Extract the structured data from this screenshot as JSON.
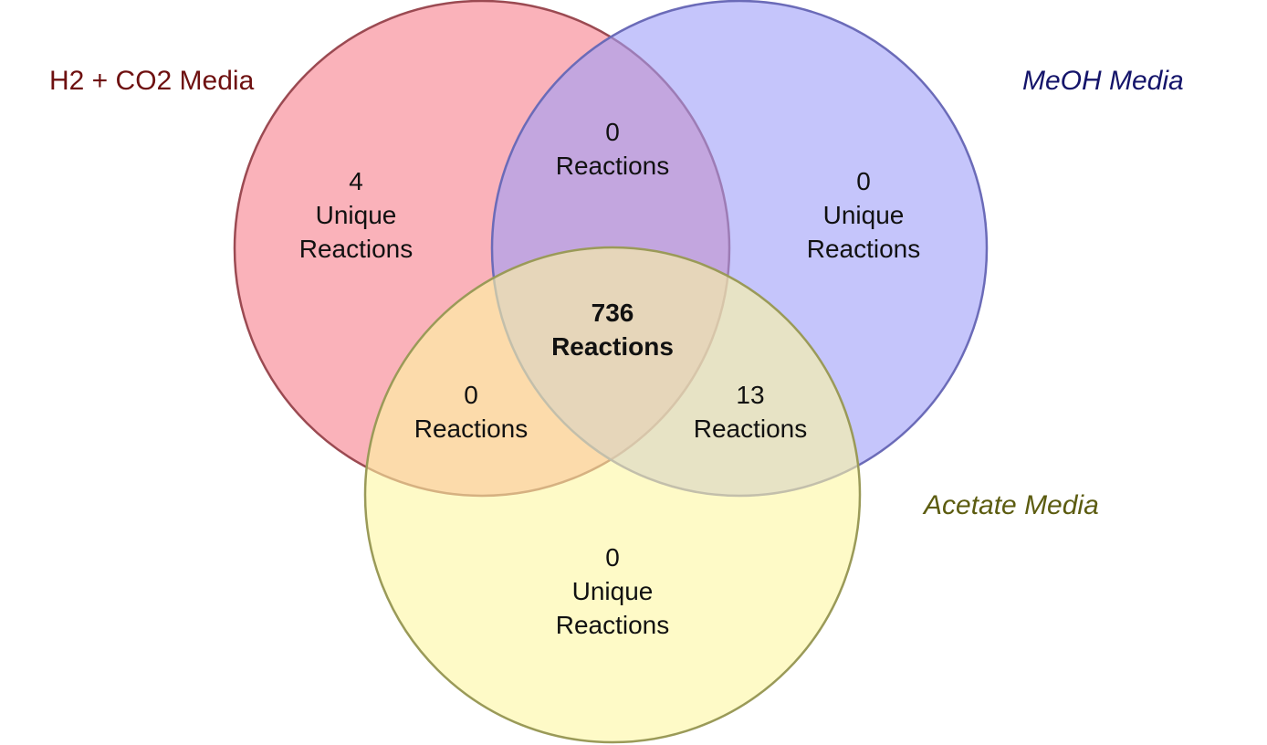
{
  "sets": [
    {
      "name": "H2 + CO2 Media",
      "fill": "#f67f8c",
      "stroke": "#9b4a52",
      "label_color": "#6e1010"
    },
    {
      "name": "MeOH Media",
      "fill": "#9f9ff8",
      "stroke": "#6b6bb8",
      "label_color": "#14146a"
    },
    {
      "name": "Acetate Media",
      "fill": "#fdf6a2",
      "stroke": "#9a9a58",
      "label_color": "#5c5c10"
    }
  ],
  "regions": {
    "h2_only": {
      "count": "4",
      "line1": "Unique",
      "line2": "Reactions"
    },
    "meoh_only": {
      "count": "0",
      "line1": "Unique",
      "line2": "Reactions"
    },
    "acetate_only": {
      "count": "0",
      "line1": "Unique",
      "line2": "Reactions"
    },
    "h2_meoh": {
      "count": "0",
      "line1": "Reactions"
    },
    "h2_acetate": {
      "count": "0",
      "line1": "Reactions"
    },
    "meoh_acetate": {
      "count": "13",
      "line1": "Reactions"
    },
    "all_three": {
      "count": "736",
      "line1": "Reactions"
    }
  }
}
